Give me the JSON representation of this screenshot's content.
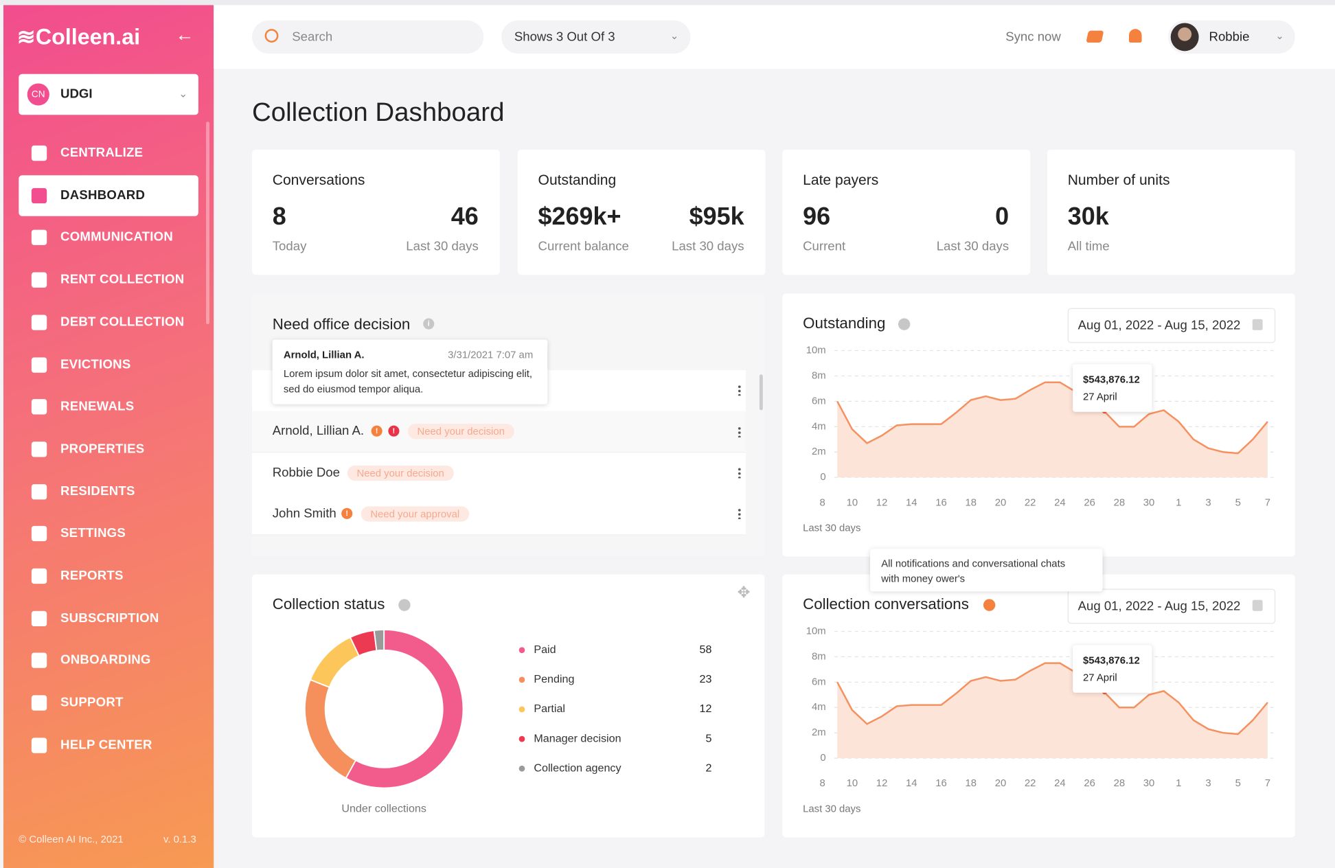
{
  "sidebar": {
    "logo": "Colleen.ai",
    "org_badge": "CN",
    "org": "UDGI",
    "active_index": 1,
    "nav": [
      "CENTRALIZE",
      "DASHBOARD",
      "COMMUNICATION",
      "RENT COLLECTION",
      "DEBT COLLECTION",
      "EVICTIONS",
      "RENEWALS",
      "PROPERTIES",
      "RESIDENTS",
      "SETTINGS",
      "REPORTS",
      "SUBSCRIPTION",
      "ONBOARDING",
      "SUPPORT",
      "HELP CENTER"
    ],
    "footer": "© Colleen AI Inc., 2021",
    "version": "v. 0.1.3"
  },
  "header": {
    "search_placeholder": "Search",
    "filter": "Shows 3 Out Of 3",
    "sync": "Sync now",
    "user": "Robbie"
  },
  "title": "Collection Dashboard",
  "stats": [
    {
      "title": "Conversations",
      "items": [
        {
          "value": "8",
          "label": "Today"
        },
        {
          "value": "46",
          "label": "Last 30 days"
        }
      ]
    },
    {
      "title": "Outstanding",
      "items": [
        {
          "value": "$269k+",
          "label": "Current balance"
        },
        {
          "value": "$95k",
          "label": "Last 30 days"
        }
      ]
    },
    {
      "title": "Late payers",
      "items": [
        {
          "value": "96",
          "label": "Current"
        },
        {
          "value": "0",
          "label": "Last 30 days"
        }
      ]
    },
    {
      "title": "Number of units",
      "items": [
        {
          "value": "30k",
          "label": "All time"
        }
      ]
    }
  ],
  "decision": {
    "title": "Need office decision",
    "tooltip": {
      "name": "Arnold, Lillian A.",
      "date": "3/31/2021 7:07 am",
      "text": "Lorem ipsum dolor sit amet, consectetur adipiscing elit, sed do eiusmod tempor  aliqua."
    },
    "rows": [
      {
        "name": "Arnold, Lillian A.",
        "badge": "Need your decision"
      },
      {
        "name": "Robbie Doe",
        "badge": "Need your decision"
      },
      {
        "name": "John Smith",
        "badge": "Need your approval"
      }
    ]
  },
  "note": [
    "All notifications and conversational chats",
    "with money ower's"
  ],
  "chart_data": [
    {
      "type": "donut",
      "title": "Collection status",
      "caption": "Under collections",
      "categories": [
        "Paid",
        "Pending",
        "Partial",
        "Manager decision",
        "Collection agency"
      ],
      "values": [
        58,
        23,
        12,
        5,
        2
      ],
      "colors": [
        "#f25c8c",
        "#f58f5c",
        "#fcc65a",
        "#ec3a52",
        "#9a9a9a"
      ]
    },
    {
      "type": "area",
      "title": "Outstanding",
      "date_range": "Aug 01, 2022 - Aug 15, 2022",
      "xlabel": "Last 30 days",
      "color": "#f5905f",
      "fill": "#fde4d8",
      "grid": true,
      "annotation": [
        "$543,876.12",
        "27 April"
      ],
      "categories": [
        "8",
        null,
        "10",
        null,
        "12",
        null,
        "14",
        null,
        "16",
        null,
        "18",
        null,
        "20",
        null,
        "22",
        null,
        "24",
        null,
        "26",
        null,
        "28",
        null,
        "30",
        null,
        "1",
        null,
        "3",
        null,
        "5",
        null,
        "7"
      ],
      "values": [
        null,
        6,
        3.8,
        2.7,
        3.3,
        4.1,
        4.2,
        4.2,
        4.2,
        5.1,
        6.1,
        6.4,
        6.1,
        6.2,
        6.9,
        7.5,
        7.5,
        6.8,
        6.0,
        5.2,
        4.0,
        4.0,
        5.0,
        5.3,
        4.4,
        3.0,
        2.3,
        2.0,
        1.9,
        3.0,
        4.4
      ],
      "ylim": [
        0,
        10
      ],
      "yticks": [
        0,
        {
          "value": 2,
          "label": "2m"
        },
        {
          "value": 4,
          "label": "4m"
        },
        {
          "value": 6,
          "label": "6m"
        },
        {
          "value": 8,
          "label": "8m"
        },
        {
          "value": 10,
          "label": "10m"
        }
      ]
    },
    {
      "type": "area",
      "title": "Collection conversations",
      "date_range": "Aug 01, 2022 - Aug 15, 2022",
      "xlabel": "Last 30 days",
      "color": "#f5905f",
      "fill": "#fde4d8",
      "grid": true,
      "annotation": [
        "$543,876.12",
        "27 April"
      ],
      "categories": [
        "8",
        null,
        "10",
        null,
        "12",
        null,
        "14",
        null,
        "16",
        null,
        "18",
        null,
        "20",
        null,
        "22",
        null,
        "24",
        null,
        "26",
        null,
        "28",
        null,
        "30",
        null,
        "1",
        null,
        "3",
        null,
        "5",
        null,
        "7"
      ],
      "values": [
        null,
        6,
        3.8,
        2.7,
        3.3,
        4.1,
        4.2,
        4.2,
        4.2,
        5.1,
        6.1,
        6.4,
        6.1,
        6.2,
        6.9,
        7.5,
        7.5,
        6.8,
        6.0,
        5.2,
        4.0,
        4.0,
        5.0,
        5.3,
        4.4,
        3.0,
        2.3,
        2.0,
        1.9,
        3.0,
        4.4
      ],
      "ylim": [
        0,
        10
      ],
      "yticks": [
        0,
        {
          "value": 2,
          "label": "2m"
        },
        {
          "value": 4,
          "label": "4m"
        },
        {
          "value": 6,
          "label": "6m"
        },
        {
          "value": 8,
          "label": "8m"
        },
        {
          "value": 10,
          "label": "10m"
        }
      ]
    }
  ]
}
